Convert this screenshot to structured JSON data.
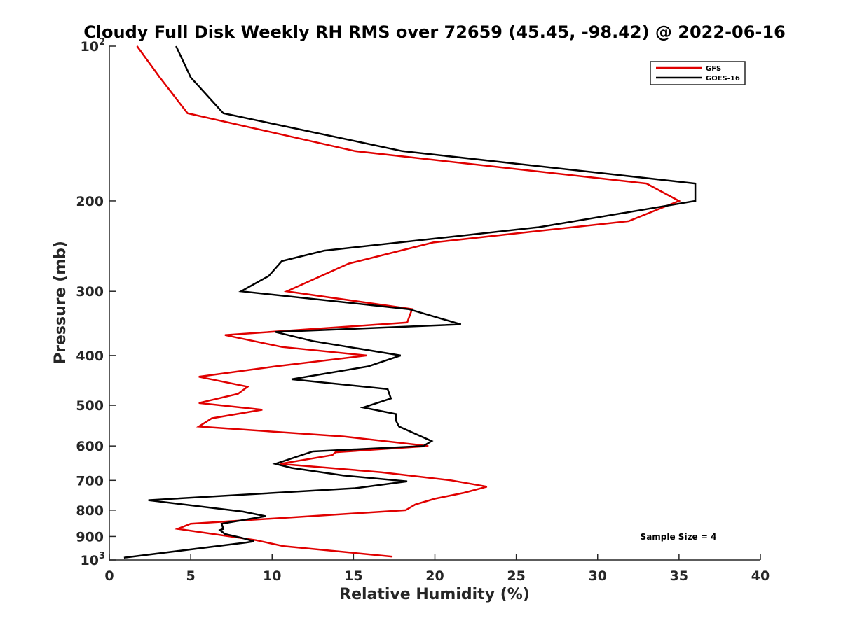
{
  "chart_data": {
    "type": "line",
    "title": "Cloudy Full Disk Weekly RH RMS over 72659 (45.45, -98.42) @ 2022-06-16",
    "xlabel": "Relative Humidity (%)",
    "ylabel": "Pressure (mb)",
    "xlim": [
      0,
      40
    ],
    "ylim": [
      100,
      1000
    ],
    "yscale": "log",
    "y_reversed": true,
    "xticks": [
      0,
      5,
      10,
      15,
      20,
      25,
      30,
      35,
      40
    ],
    "xtick_labels": [
      "0",
      "5",
      "10",
      "15",
      "20",
      "25",
      "30",
      "35",
      "40"
    ],
    "yticks": [
      100,
      200,
      300,
      400,
      500,
      600,
      700,
      800,
      900,
      1000
    ],
    "ytick_labels": [
      {
        "base": "10",
        "exp": "2"
      },
      {
        "base": "200",
        "exp": ""
      },
      {
        "base": "300",
        "exp": ""
      },
      {
        "base": "400",
        "exp": ""
      },
      {
        "base": "500",
        "exp": ""
      },
      {
        "base": "600",
        "exp": ""
      },
      {
        "base": "700",
        "exp": ""
      },
      {
        "base": "800",
        "exp": ""
      },
      {
        "base": "900",
        "exp": ""
      },
      {
        "base": "10",
        "exp": "3"
      }
    ],
    "grid": false,
    "legend_position": "top-right",
    "annotation": "Sample Size = 4",
    "series": [
      {
        "name": "GFS",
        "color": "#e00000",
        "points": [
          [
            1.7,
            100
          ],
          [
            3.1,
            115
          ],
          [
            4.8,
            135
          ],
          [
            15.1,
            160
          ],
          [
            33,
            185
          ],
          [
            35,
            200
          ],
          [
            31.9,
            219
          ],
          [
            19.9,
            241
          ],
          [
            14.7,
            265
          ],
          [
            10.9,
            300
          ],
          [
            18.6,
            325
          ],
          [
            18.3,
            345
          ],
          [
            7.1,
            365
          ],
          [
            10.6,
            385
          ],
          [
            15.8,
            400
          ],
          [
            10.2,
            420
          ],
          [
            5.5,
            440
          ],
          [
            8.5,
            460
          ],
          [
            7.9,
            475
          ],
          [
            5.5,
            495
          ],
          [
            9.4,
            510
          ],
          [
            6.3,
            530
          ],
          [
            5.5,
            550
          ],
          [
            14.4,
            575
          ],
          [
            19.6,
            600
          ],
          [
            13.9,
            617
          ],
          [
            13.7,
            625
          ],
          [
            10.5,
            650
          ],
          [
            16.7,
            675
          ],
          [
            21,
            700
          ],
          [
            23.2,
            720
          ],
          [
            21.8,
            740
          ],
          [
            20,
            760
          ],
          [
            18.8,
            780
          ],
          [
            18.2,
            800
          ],
          [
            11.5,
            825
          ],
          [
            5,
            850
          ],
          [
            4.2,
            870
          ],
          [
            9,
            915
          ],
          [
            10.7,
            940
          ],
          [
            17.4,
            985
          ]
        ]
      },
      {
        "name": "GOES-16",
        "color": "#000000",
        "points": [
          [
            4.1,
            100
          ],
          [
            5,
            115
          ],
          [
            7,
            135
          ],
          [
            18,
            160
          ],
          [
            36,
            185
          ],
          [
            36,
            200
          ],
          [
            26.4,
            225
          ],
          [
            13.2,
            250
          ],
          [
            10.6,
            262
          ],
          [
            9.8,
            280
          ],
          [
            8.1,
            300
          ],
          [
            18.4,
            325
          ],
          [
            21.6,
            348
          ],
          [
            10.2,
            360
          ],
          [
            12.5,
            375
          ],
          [
            17.9,
            400
          ],
          [
            15.9,
            420
          ],
          [
            11.2,
            445
          ],
          [
            17.1,
            465
          ],
          [
            17.3,
            485
          ],
          [
            15.6,
            505
          ],
          [
            17.6,
            520
          ],
          [
            17.6,
            535
          ],
          [
            17.8,
            550
          ],
          [
            19.8,
            587
          ],
          [
            19.3,
            600
          ],
          [
            12.5,
            615
          ],
          [
            10.2,
            650
          ],
          [
            11.2,
            662
          ],
          [
            14.4,
            685
          ],
          [
            18.3,
            703
          ],
          [
            15.1,
            725
          ],
          [
            2.4,
            765
          ],
          [
            8.2,
            805
          ],
          [
            9.6,
            822
          ],
          [
            6.9,
            850
          ],
          [
            7,
            870
          ],
          [
            6.8,
            875
          ],
          [
            7.1,
            890
          ],
          [
            8.1,
            905
          ],
          [
            8.9,
            920
          ],
          [
            8.4,
            925
          ],
          [
            0.9,
            990
          ]
        ]
      }
    ]
  }
}
